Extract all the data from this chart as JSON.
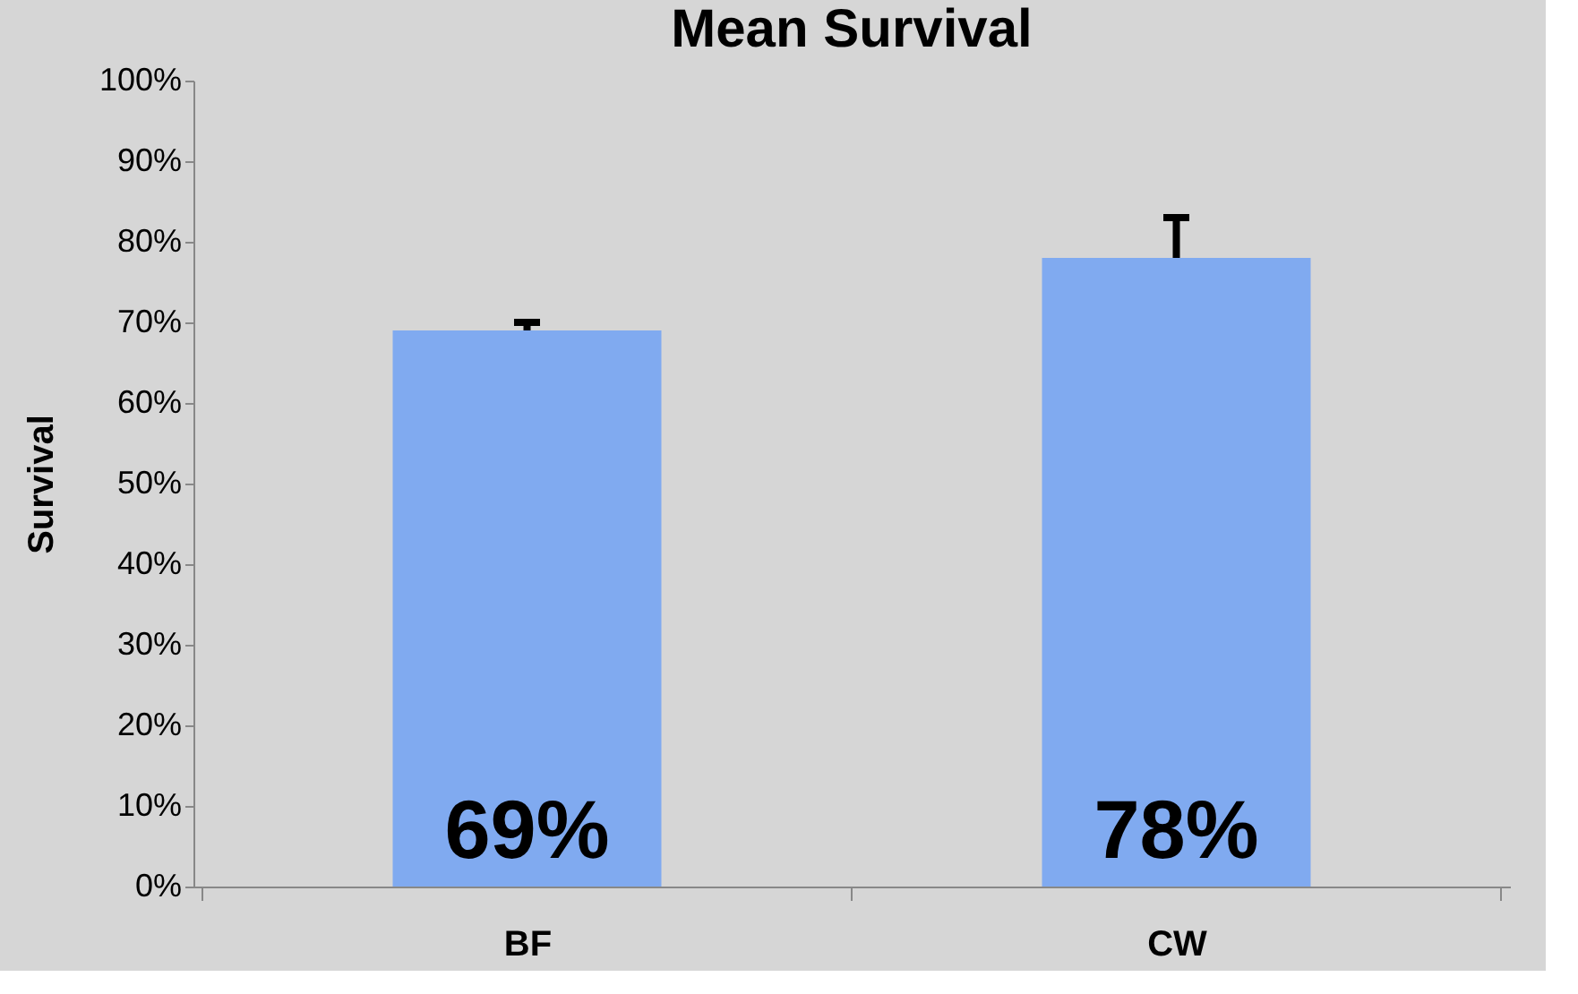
{
  "chart_data": {
    "type": "bar",
    "title": "Mean Survival",
    "ylabel": "Survival",
    "categories": [
      "BF",
      "CW"
    ],
    "series": [
      {
        "color": "#80aaf0",
        "values": [
          69,
          78
        ],
        "errors": [
          1,
          5
        ],
        "value_labels": [
          "69%",
          "78%"
        ]
      }
    ],
    "ylim": [
      0,
      100
    ],
    "yticks": [
      {
        "value": 0,
        "label": "0%"
      },
      {
        "value": 10,
        "label": "10%"
      },
      {
        "value": 20,
        "label": "20%"
      },
      {
        "value": 30,
        "label": "30%"
      },
      {
        "value": 40,
        "label": "40%"
      },
      {
        "value": 50,
        "label": "50%"
      },
      {
        "value": 60,
        "label": "60%"
      },
      {
        "value": 70,
        "label": "70%"
      },
      {
        "value": 80,
        "label": "80%"
      },
      {
        "value": 90,
        "label": "90%"
      },
      {
        "value": 100,
        "label": "100%"
      }
    ]
  }
}
